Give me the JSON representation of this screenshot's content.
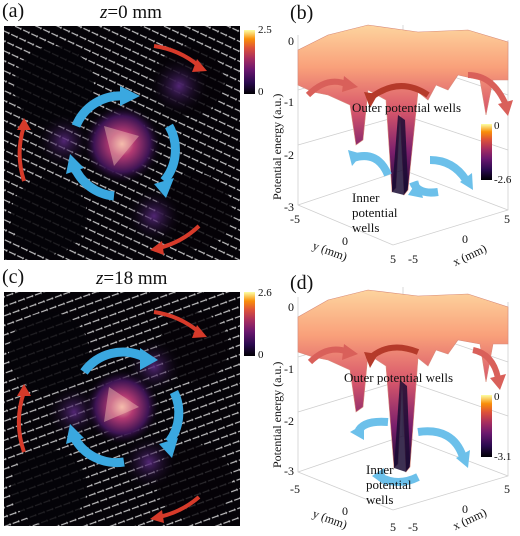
{
  "panels": {
    "a": {
      "label": "(a)",
      "title_var": "z",
      "title_val": "=0 mm",
      "cbar_max": "2.5",
      "cbar_min": "0"
    },
    "b": {
      "label": "(b)",
      "ylabel": "Potential energy (a.u.)",
      "zticks": [
        "0",
        "-1",
        "-2",
        "-3"
      ],
      "xlabel": "x (mm)",
      "ylabel_xy": "y (mm)",
      "xticks": [
        "-5",
        "0",
        "5"
      ],
      "yticks": [
        "-5",
        "0",
        "5"
      ],
      "cbar_max": "0",
      "cbar_min": "-2.6",
      "outer": "Outer potential wells",
      "inner": "Inner potential wells"
    },
    "c": {
      "label": "(c)",
      "title_var": "z",
      "title_val": "=18 mm",
      "cbar_max": "2.6",
      "cbar_min": "0"
    },
    "d": {
      "label": "(d)",
      "ylabel": "Potential energy (a.u.)",
      "zticks": [
        "0",
        "-1",
        "-2",
        "-3"
      ],
      "xlabel": "x (mm)",
      "ylabel_xy": "y (mm)",
      "xticks": [
        "-5",
        "0",
        "5"
      ],
      "yticks": [
        "-5",
        "0",
        "5"
      ],
      "cbar_max": "0",
      "cbar_min": "-3.1",
      "outer": "Outer potential wells",
      "inner": "Inner potential wells"
    }
  },
  "colors": {
    "blue_arrow": "#3aa8e0",
    "red_arrow": "#d63a2a",
    "magma_mid": "#b5367a"
  }
}
